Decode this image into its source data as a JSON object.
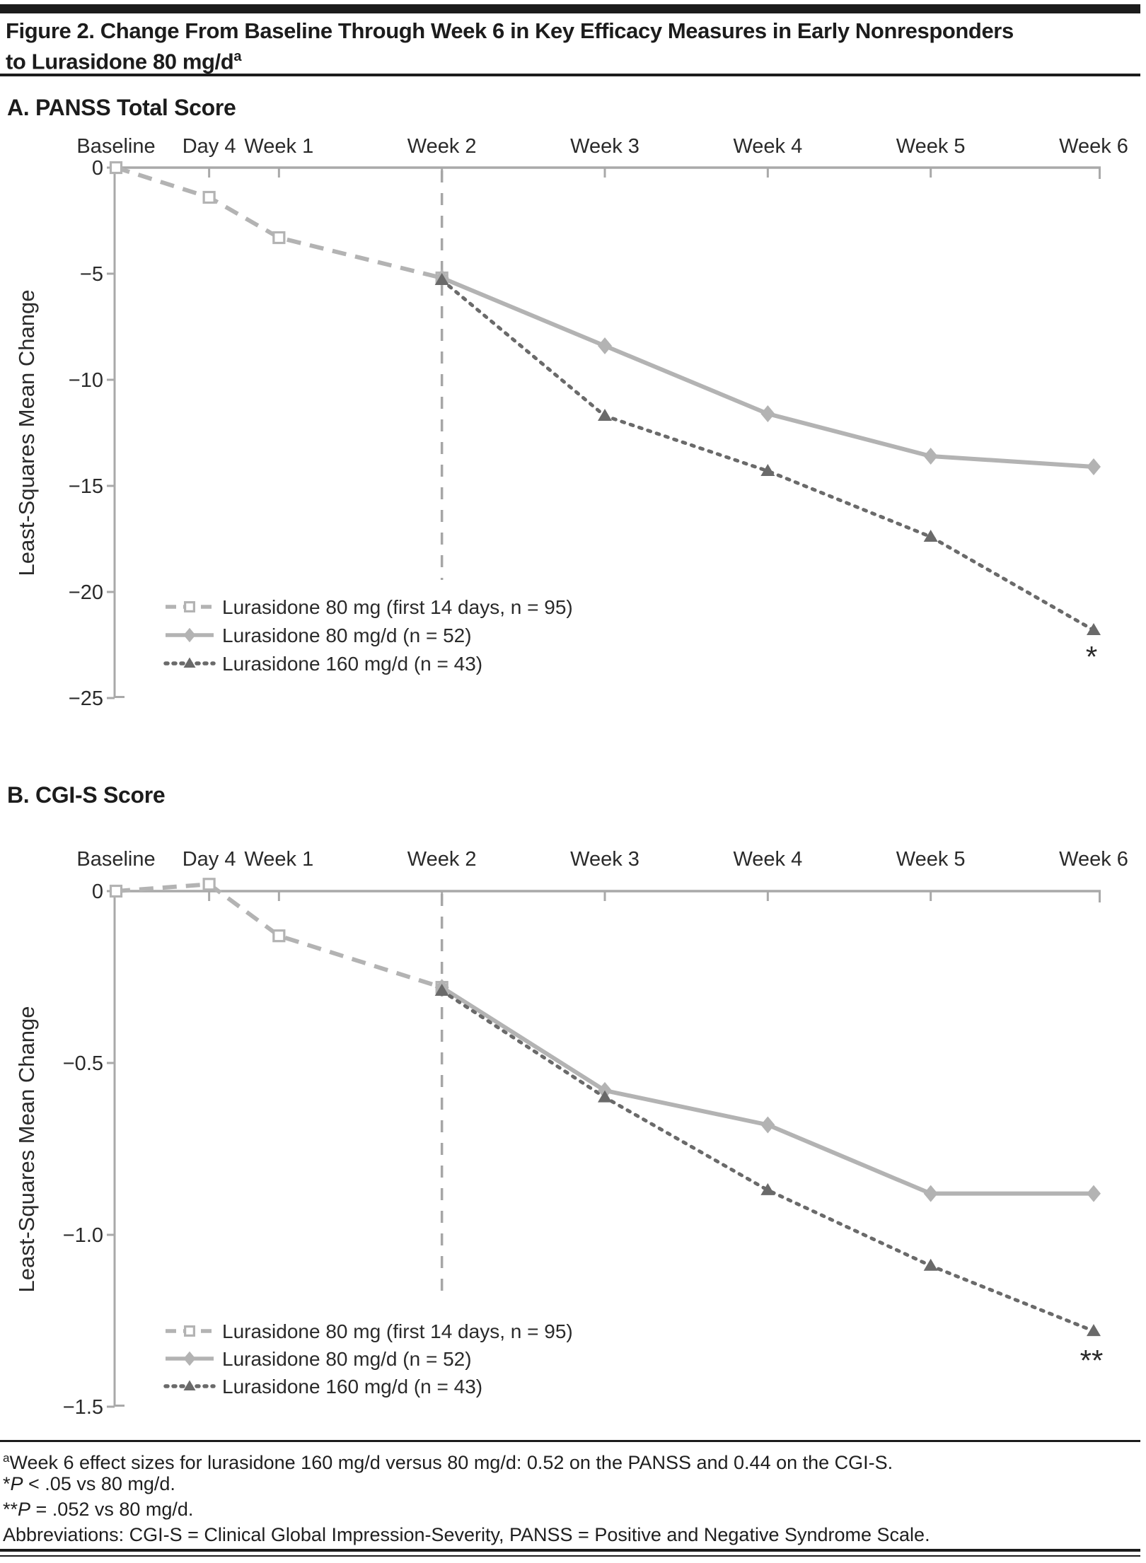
{
  "title": {
    "line1": "Figure 2. Change From Baseline Through Week 6 in Key Efficacy Measures in Early Nonresponders",
    "line2": "to Lurasidone 80 mg/d",
    "sup": "a"
  },
  "style": {
    "light_gray_series": "#b3b3b3",
    "dark_gray_series": "#6a6a6a",
    "axis_color": "#a9a9a9",
    "dashed_guide_color": "#a6a6a6",
    "text_color": "#2a2a2a",
    "rule_color": "#1c1c1c"
  },
  "chart_data": [
    {
      "type": "line",
      "title": "A. PANSS Total Score",
      "ylabel": "Least-Squares Mean Change",
      "x_unit": "days",
      "x_ticks": [
        {
          "day": 0,
          "label": "Baseline"
        },
        {
          "day": 4,
          "label": "Day 4"
        },
        {
          "day": 7,
          "label": "Week 1"
        },
        {
          "day": 14,
          "label": "Week 2"
        },
        {
          "day": 21,
          "label": "Week 3"
        },
        {
          "day": 28,
          "label": "Week 4"
        },
        {
          "day": 35,
          "label": "Week 5"
        },
        {
          "day": 42,
          "label": "Week 6"
        }
      ],
      "ylim": [
        0,
        -25
      ],
      "y_ticks": [
        {
          "v": 0,
          "label": "0"
        },
        {
          "v": -5,
          "label": "−5"
        },
        {
          "v": -10,
          "label": "−10"
        },
        {
          "v": -15,
          "label": "−15"
        },
        {
          "v": -20,
          "label": "−20"
        },
        {
          "v": -25,
          "label": "−25"
        }
      ],
      "guide_line_day": 14,
      "series": [
        {
          "name": "Lurasidone 80 mg (first 14 days, n = 95)",
          "marker": "open-square",
          "line": "dashed",
          "color": "#b3b3b3",
          "days": [
            0,
            4,
            7,
            14
          ],
          "values": [
            0,
            -1.4,
            -3.3,
            -5.2
          ]
        },
        {
          "name": "Lurasidone 80 mg/d (n = 52)",
          "marker": "diamond",
          "line": "solid",
          "color": "#b3b3b3",
          "days": [
            14,
            21,
            28,
            35,
            42
          ],
          "values": [
            -5.2,
            -8.4,
            -11.6,
            -13.6,
            -14.1
          ]
        },
        {
          "name": "Lurasidone 160 mg/d (n = 43)",
          "marker": "triangle",
          "line": "dotted",
          "color": "#6a6a6a",
          "days": [
            14,
            21,
            28,
            35,
            42
          ],
          "values": [
            -5.3,
            -11.7,
            -14.3,
            -17.4,
            -21.8
          ]
        }
      ],
      "annotation": {
        "text": "*",
        "day": 42,
        "value": -21.8
      },
      "legend_position": "bottom-left-inside",
      "grid": false
    },
    {
      "type": "line",
      "title": "B. CGI-S Score",
      "ylabel": "Least-Squares Mean Change",
      "x_unit": "days",
      "x_ticks": [
        {
          "day": 0,
          "label": "Baseline"
        },
        {
          "day": 4,
          "label": "Day 4"
        },
        {
          "day": 7,
          "label": "Week 1"
        },
        {
          "day": 14,
          "label": "Week 2"
        },
        {
          "day": 21,
          "label": "Week 3"
        },
        {
          "day": 28,
          "label": "Week 4"
        },
        {
          "day": 35,
          "label": "Week 5"
        },
        {
          "day": 42,
          "label": "Week 6"
        }
      ],
      "ylim": [
        0,
        -1.5
      ],
      "y_ticks": [
        {
          "v": 0,
          "label": "0"
        },
        {
          "v": -0.5,
          "label": "−0.5"
        },
        {
          "v": -1.0,
          "label": "−1.0"
        },
        {
          "v": -1.5,
          "label": "−1.5"
        }
      ],
      "guide_line_day": 14,
      "series": [
        {
          "name": "Lurasidone 80 mg (first 14 days, n = 95)",
          "marker": "open-square",
          "line": "dashed",
          "color": "#b3b3b3",
          "days": [
            0,
            4,
            7,
            14
          ],
          "values": [
            0,
            0.02,
            -0.13,
            -0.28
          ]
        },
        {
          "name": "Lurasidone 80 mg/d (n = 52)",
          "marker": "diamond",
          "line": "solid",
          "color": "#b3b3b3",
          "days": [
            14,
            21,
            28,
            35,
            42
          ],
          "values": [
            -0.28,
            -0.58,
            -0.68,
            -0.88,
            -0.88
          ]
        },
        {
          "name": "Lurasidone 160 mg/d (n = 43)",
          "marker": "triangle",
          "line": "dotted",
          "color": "#6a6a6a",
          "days": [
            14,
            21,
            28,
            35,
            42
          ],
          "values": [
            -0.29,
            -0.6,
            -0.87,
            -1.09,
            -1.28
          ]
        }
      ],
      "annotation": {
        "text": "**",
        "day": 42,
        "value": -1.28
      },
      "legend_position": "bottom-left-inside",
      "grid": false
    }
  ],
  "footnotes": {
    "sup": "a",
    "line1": "Week 6 effect sizes for lurasidone 160 mg/d versus 80 mg/d: 0.52 on the PANSS and 0.44 on the CGI-S.",
    "star1": "*",
    "p": "P",
    "rest1": " < .05 vs 80 mg/d.",
    "star2": "**",
    "rest2": " = .052 vs 80 mg/d.",
    "line4": "Abbreviations: CGI-S = Clinical Global Impression-Severity, PANSS = Positive and Negative Syndrome Scale."
  }
}
